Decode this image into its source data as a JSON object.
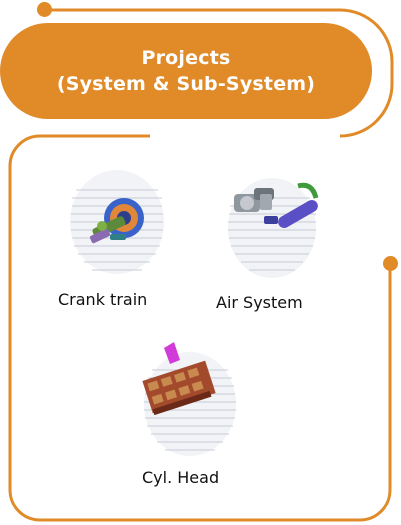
{
  "header": {
    "title_line1": "Projects",
    "title_line2": "(System & Sub-System)"
  },
  "colors": {
    "accent": "#e08a28",
    "text": "#111111"
  },
  "projects": [
    {
      "label": "Crank train",
      "icon": "crank-train-cad-model"
    },
    {
      "label": "Air System",
      "icon": "air-system-cad-model"
    },
    {
      "label": "Cyl. Head",
      "icon": "cylinder-head-cad-model"
    }
  ]
}
